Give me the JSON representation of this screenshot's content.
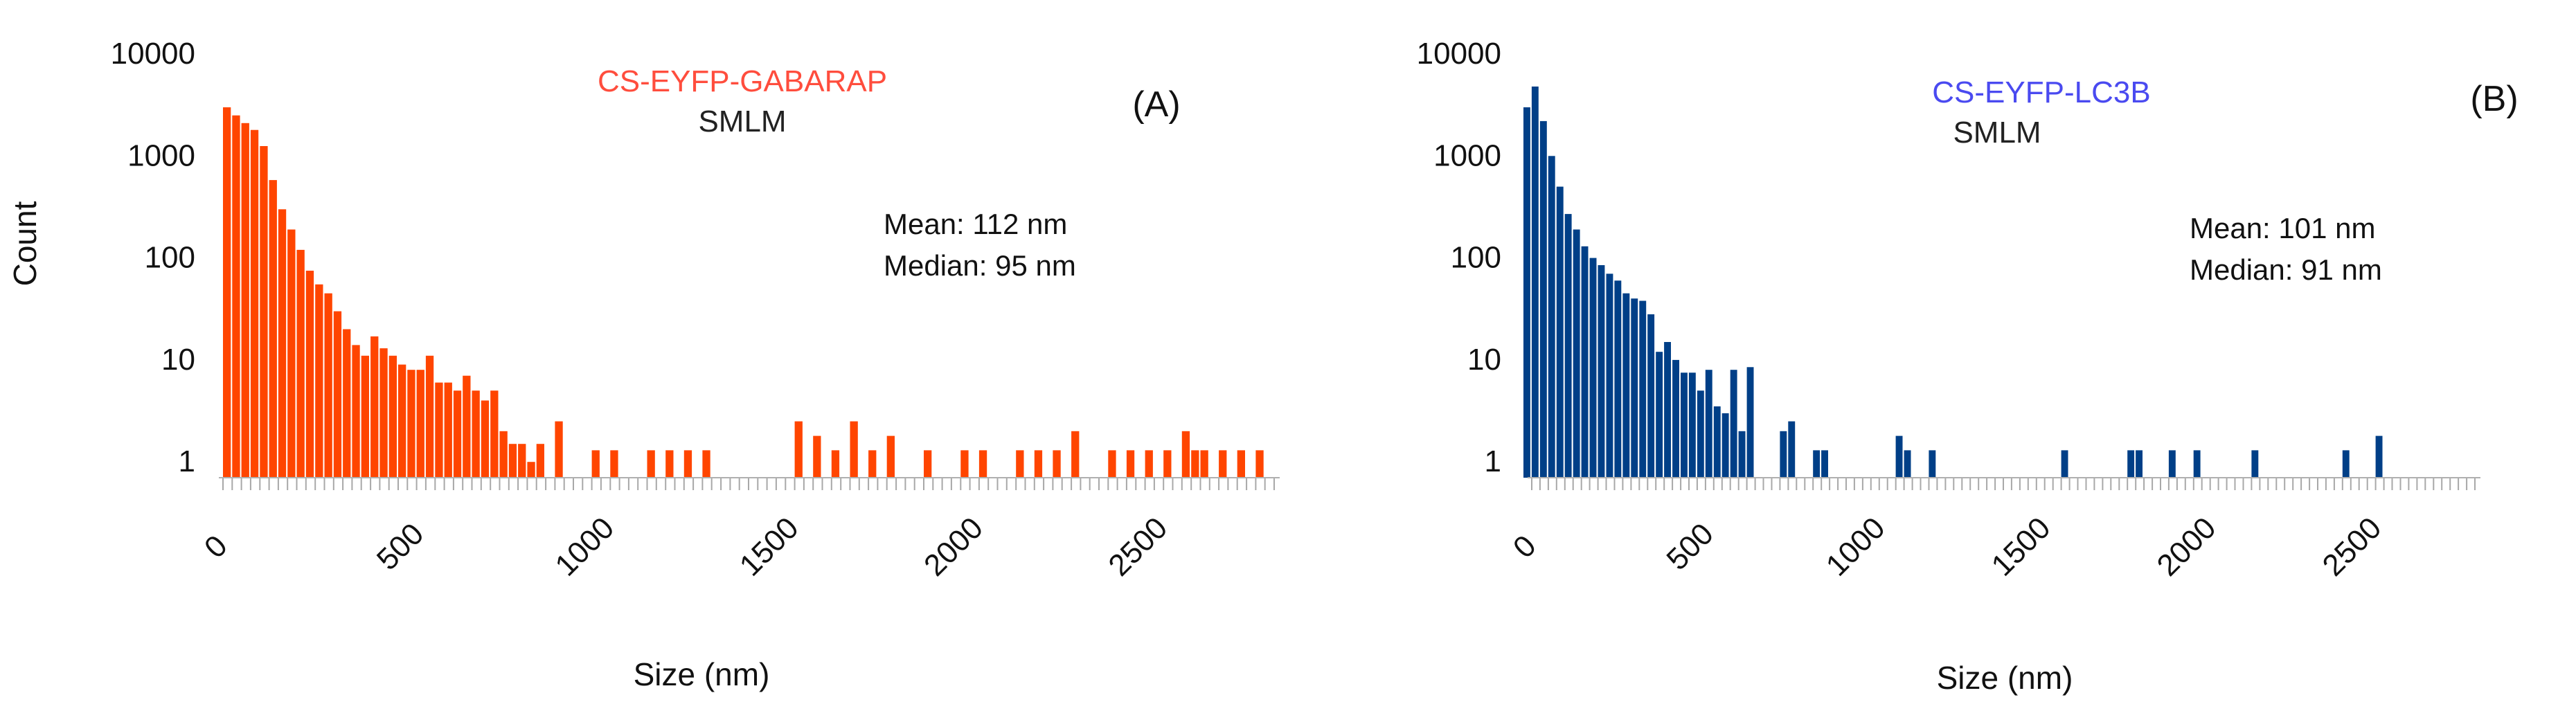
{
  "chart_data": [
    {
      "type": "bar",
      "panel_label": "(A)",
      "title": "CS-EYFP-GABARAP",
      "subtitle": "SMLM",
      "xlabel": "Size (nm)",
      "ylabel": "Count",
      "y_scale": "log",
      "xlim": [
        0,
        2850
      ],
      "ylim": [
        0.7,
        10000
      ],
      "xticks": [
        0,
        500,
        1000,
        1500,
        2000,
        2500
      ],
      "xtick_labels": [
        "0",
        "500",
        "1000",
        "1500",
        "2000",
        "2500"
      ],
      "yticks": [
        1,
        10,
        100,
        1000,
        10000
      ],
      "ytick_labels": [
        "1",
        "10",
        "100",
        "1000",
        "10000"
      ],
      "bin_width": 25,
      "bars": [
        {
          "x": 50,
          "y": 3000
        },
        {
          "x": 75,
          "y": 2500
        },
        {
          "x": 100,
          "y": 2100
        },
        {
          "x": 125,
          "y": 1800
        },
        {
          "x": 150,
          "y": 1250
        },
        {
          "x": 175,
          "y": 580
        },
        {
          "x": 200,
          "y": 300
        },
        {
          "x": 225,
          "y": 190
        },
        {
          "x": 250,
          "y": 120
        },
        {
          "x": 275,
          "y": 75
        },
        {
          "x": 300,
          "y": 55
        },
        {
          "x": 325,
          "y": 45
        },
        {
          "x": 350,
          "y": 30
        },
        {
          "x": 375,
          "y": 20
        },
        {
          "x": 400,
          "y": 14
        },
        {
          "x": 425,
          "y": 11
        },
        {
          "x": 450,
          "y": 17
        },
        {
          "x": 475,
          "y": 13
        },
        {
          "x": 500,
          "y": 11
        },
        {
          "x": 525,
          "y": 9
        },
        {
          "x": 550,
          "y": 8
        },
        {
          "x": 575,
          "y": 8
        },
        {
          "x": 600,
          "y": 11
        },
        {
          "x": 625,
          "y": 6
        },
        {
          "x": 650,
          "y": 6
        },
        {
          "x": 675,
          "y": 5
        },
        {
          "x": 700,
          "y": 7
        },
        {
          "x": 725,
          "y": 5
        },
        {
          "x": 750,
          "y": 4
        },
        {
          "x": 775,
          "y": 5
        },
        {
          "x": 800,
          "y": 2
        },
        {
          "x": 825,
          "y": 1.5
        },
        {
          "x": 850,
          "y": 1.5
        },
        {
          "x": 875,
          "y": 1
        },
        {
          "x": 900,
          "y": 1.5
        },
        {
          "x": 950,
          "y": 2.5
        },
        {
          "x": 1050,
          "y": 1.3
        },
        {
          "x": 1100,
          "y": 1.3
        },
        {
          "x": 1200,
          "y": 1.3
        },
        {
          "x": 1250,
          "y": 1.3
        },
        {
          "x": 1300,
          "y": 1.3
        },
        {
          "x": 1350,
          "y": 1.3
        },
        {
          "x": 1600,
          "y": 2.5
        },
        {
          "x": 1650,
          "y": 1.8
        },
        {
          "x": 1700,
          "y": 1.3
        },
        {
          "x": 1750,
          "y": 2.5
        },
        {
          "x": 1800,
          "y": 1.3
        },
        {
          "x": 1850,
          "y": 1.8
        },
        {
          "x": 1950,
          "y": 1.3
        },
        {
          "x": 2050,
          "y": 1.3
        },
        {
          "x": 2100,
          "y": 1.3
        },
        {
          "x": 2200,
          "y": 1.3
        },
        {
          "x": 2250,
          "y": 1.3
        },
        {
          "x": 2300,
          "y": 1.3
        },
        {
          "x": 2350,
          "y": 2
        },
        {
          "x": 2450,
          "y": 1.3
        },
        {
          "x": 2500,
          "y": 1.3
        },
        {
          "x": 2550,
          "y": 1.3
        },
        {
          "x": 2600,
          "y": 1.3
        },
        {
          "x": 2650,
          "y": 2
        },
        {
          "x": 2675,
          "y": 1.3
        },
        {
          "x": 2700,
          "y": 1.3
        },
        {
          "x": 2750,
          "y": 1.3
        },
        {
          "x": 2800,
          "y": 1.3
        },
        {
          "x": 2850,
          "y": 1.3
        }
      ],
      "annotations": [
        "Mean: 112 nm",
        "Median: 95 nm"
      ],
      "bar_color": "#ff4500",
      "title_color": "#ff4d3d",
      "grid": false
    },
    {
      "type": "bar",
      "panel_label": "(B)",
      "title": "CS-EYFP-LC3B",
      "subtitle": "SMLM",
      "xlabel": "Size (nm)",
      "ylabel": "",
      "y_scale": "log",
      "xlim": [
        0,
        2850
      ],
      "ylim": [
        0.7,
        10000
      ],
      "xticks": [
        0,
        500,
        1000,
        1500,
        2000,
        2500
      ],
      "xtick_labels": [
        "0",
        "500",
        "1000",
        "1500",
        "2000",
        "2500"
      ],
      "yticks": [
        1,
        10,
        100,
        1000,
        10000
      ],
      "ytick_labels": [
        "1",
        "10",
        "100",
        "1000",
        "10000"
      ],
      "bin_width": 25,
      "bars": [
        {
          "x": 25,
          "y": 3000
        },
        {
          "x": 50,
          "y": 4800
        },
        {
          "x": 75,
          "y": 2200
        },
        {
          "x": 100,
          "y": 1000
        },
        {
          "x": 125,
          "y": 500
        },
        {
          "x": 150,
          "y": 270
        },
        {
          "x": 175,
          "y": 190
        },
        {
          "x": 200,
          "y": 130
        },
        {
          "x": 225,
          "y": 100
        },
        {
          "x": 250,
          "y": 85
        },
        {
          "x": 275,
          "y": 70
        },
        {
          "x": 300,
          "y": 60
        },
        {
          "x": 325,
          "y": 45
        },
        {
          "x": 350,
          "y": 40
        },
        {
          "x": 375,
          "y": 38
        },
        {
          "x": 400,
          "y": 28
        },
        {
          "x": 425,
          "y": 12
        },
        {
          "x": 450,
          "y": 15
        },
        {
          "x": 475,
          "y": 10
        },
        {
          "x": 500,
          "y": 7.5
        },
        {
          "x": 525,
          "y": 7.5
        },
        {
          "x": 550,
          "y": 5
        },
        {
          "x": 575,
          "y": 8
        },
        {
          "x": 600,
          "y": 3.5
        },
        {
          "x": 625,
          "y": 3
        },
        {
          "x": 650,
          "y": 8
        },
        {
          "x": 675,
          "y": 2
        },
        {
          "x": 700,
          "y": 8.5
        },
        {
          "x": 800,
          "y": 2
        },
        {
          "x": 825,
          "y": 2.5
        },
        {
          "x": 900,
          "y": 1.3
        },
        {
          "x": 925,
          "y": 1.3
        },
        {
          "x": 1150,
          "y": 1.8
        },
        {
          "x": 1175,
          "y": 1.3
        },
        {
          "x": 1250,
          "y": 1.3
        },
        {
          "x": 1650,
          "y": 1.3
        },
        {
          "x": 1850,
          "y": 1.3
        },
        {
          "x": 1875,
          "y": 1.3
        },
        {
          "x": 1975,
          "y": 1.3
        },
        {
          "x": 2050,
          "y": 1.3
        },
        {
          "x": 2225,
          "y": 1.3
        },
        {
          "x": 2500,
          "y": 1.3
        },
        {
          "x": 2600,
          "y": 1.8
        }
      ],
      "annotations": [
        "Mean: 101 nm",
        "Median: 91 nm"
      ],
      "bar_color": "#003f87",
      "title_color": "#4a4af0",
      "grid": false
    }
  ]
}
